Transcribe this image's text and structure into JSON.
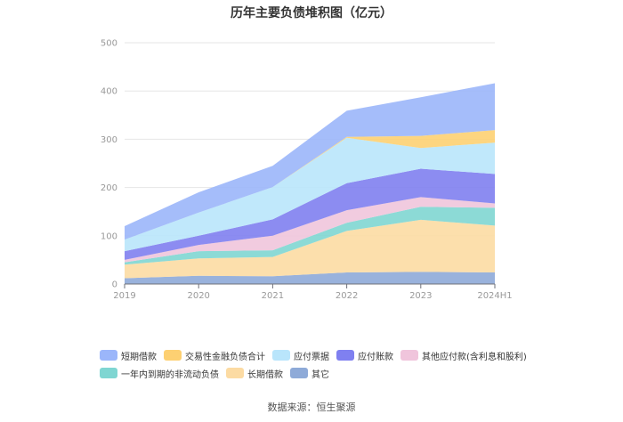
{
  "chart_data": {
    "type": "area",
    "stacked": true,
    "title": "历年主要负债堆积图（亿元）",
    "categories": [
      "2019",
      "2020",
      "2021",
      "2022",
      "2023",
      "2024H1"
    ],
    "y_ticks": [
      "0",
      "100",
      "200",
      "300",
      "400",
      "500"
    ],
    "ylim": [
      0,
      500
    ],
    "series": [
      {
        "name": "其它",
        "color": "#8eaad8",
        "values": [
          12,
          17,
          16,
          24,
          25,
          24
        ]
      },
      {
        "name": "长期借款",
        "color": "#fcdba3",
        "values": [
          28,
          36,
          40,
          86,
          108,
          97
        ]
      },
      {
        "name": "一年内到期的非流动负债",
        "color": "#7fd6d2",
        "values": [
          5,
          15,
          14,
          17,
          27,
          37
        ]
      },
      {
        "name": "其他应付款(含利息和股利)",
        "color": "#f0c5dc",
        "values": [
          5,
          13,
          30,
          26,
          20,
          9
        ]
      },
      {
        "name": "应付账款",
        "color": "#7f80f0",
        "values": [
          18,
          19,
          34,
          56,
          59,
          61
        ]
      },
      {
        "name": "应付票据",
        "color": "#b9e5fb",
        "values": [
          24,
          48,
          67,
          94,
          43,
          65
        ]
      },
      {
        "name": "交易性金融负债合计",
        "color": "#fdd072",
        "values": [
          0,
          0,
          0,
          2,
          25,
          26
        ]
      },
      {
        "name": "短期借款",
        "color": "#9bb6fa",
        "values": [
          28,
          42,
          44,
          54,
          80,
          97
        ]
      }
    ],
    "legend_order": [
      [
        "短期借款",
        "交易性金融负债合计",
        "应付票据",
        "应付账款",
        "其他应付款(含利息和股利)"
      ],
      [
        "一年内到期的非流动负债",
        "长期借款",
        "其它"
      ]
    ],
    "source": "数据来源：恒生聚源"
  }
}
